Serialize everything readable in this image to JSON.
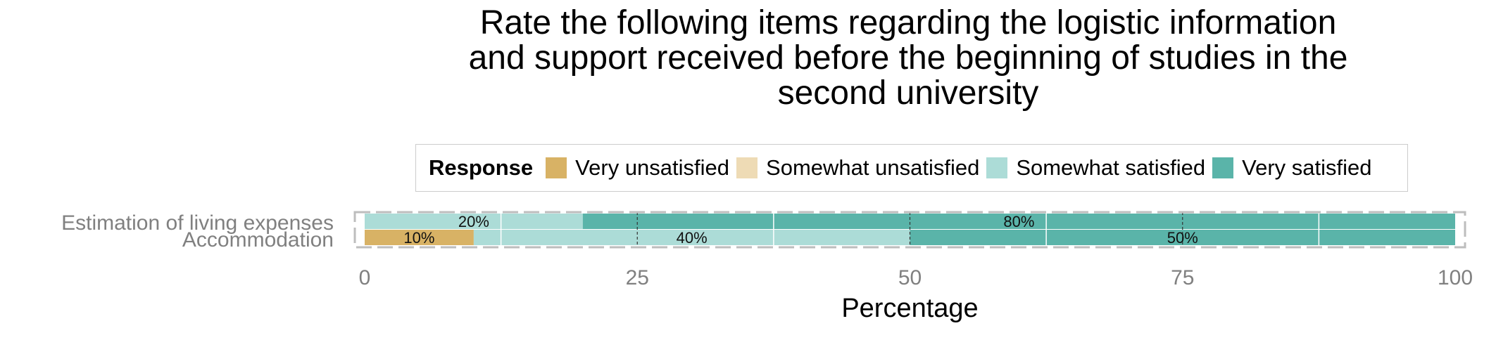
{
  "chart_data": {
    "type": "bar",
    "orientation": "horizontal",
    "stacked": true,
    "title": "Rate the following items regarding the logistic information\nand support received before the beginning of studies in the\nsecond university",
    "xlabel": "Percentage",
    "ylabel": "",
    "xlim": [
      0,
      100
    ],
    "xticks": [
      0,
      25,
      50,
      75,
      100
    ],
    "grid": true,
    "legend_position": "top",
    "legend_title": "Response",
    "categories": [
      "Estimation of living expenses",
      "Accommodation"
    ],
    "series": [
      {
        "name": "Very unsatisfied",
        "color": "#d8b265",
        "values": [
          0,
          10
        ]
      },
      {
        "name": "Somewhat unsatisfied",
        "color": "#eedbb5",
        "values": [
          0,
          0
        ]
      },
      {
        "name": "Somewhat satisfied",
        "color": "#acdcd7",
        "values": [
          20,
          40
        ]
      },
      {
        "name": "Very satisfied",
        "color": "#5ab4a9",
        "values": [
          80,
          50
        ]
      }
    ],
    "data_labels": [
      {
        "category": "Estimation of living expenses",
        "series": "Somewhat satisfied",
        "text": "20%"
      },
      {
        "category": "Estimation of living expenses",
        "series": "Very satisfied",
        "text": "80%"
      },
      {
        "category": "Accommodation",
        "series": "Very unsatisfied",
        "text": "10%"
      },
      {
        "category": "Accommodation",
        "series": "Somewhat satisfied",
        "text": "40%"
      },
      {
        "category": "Accommodation",
        "series": "Very satisfied",
        "text": "50%"
      }
    ]
  }
}
